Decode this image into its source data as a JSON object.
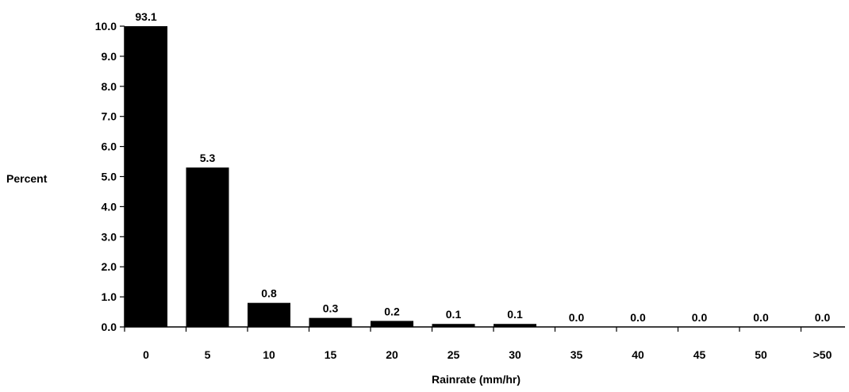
{
  "chart_data": {
    "type": "bar",
    "title": "",
    "xlabel": "Rainrate (mm/hr)",
    "ylabel": "Percent",
    "categories": [
      "0",
      "5",
      "10",
      "15",
      "20",
      "25",
      "30",
      "35",
      "40",
      "45",
      "50",
      ">50"
    ],
    "values": [
      93.1,
      5.3,
      0.8,
      0.3,
      0.2,
      0.1,
      0.1,
      0.0,
      0.0,
      0.0,
      0.0,
      0.0
    ],
    "data_labels": [
      "93.1",
      "5.3",
      "0.8",
      "0.3",
      "0.2",
      "0.1",
      "0.1",
      "0.0",
      "0.0",
      "0.0",
      "0.0",
      "0.0"
    ],
    "ylim": [
      0,
      10
    ],
    "yticks": [
      "0.0",
      "1.0",
      "2.0",
      "3.0",
      "4.0",
      "5.0",
      "6.0",
      "7.0",
      "8.0",
      "9.0",
      "10.0"
    ],
    "bar_color": "#000000",
    "grid": false,
    "legend": "none"
  }
}
